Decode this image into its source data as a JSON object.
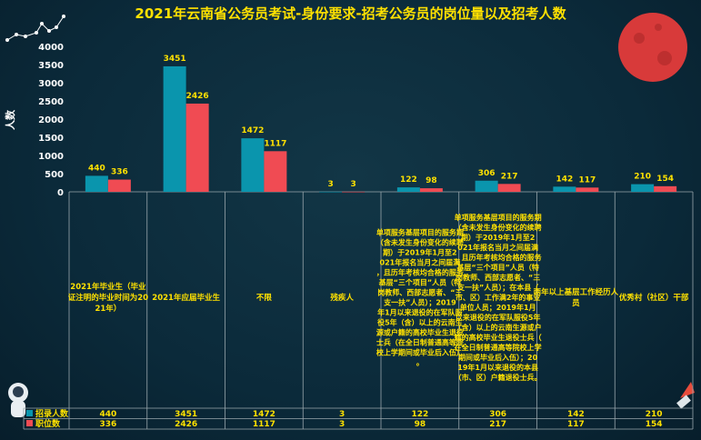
{
  "title": "2021年云南省公务员考试-身份要求-招考公务员的岗位量以及招考人数",
  "chart_data": {
    "type": "bar",
    "title": "2021年云南省公务员考试-身份要求-招考公务员的岗位量以及招考人数",
    "ylabel": "人数",
    "ylim": [
      0,
      4000
    ],
    "yticks": [
      0,
      500,
      1000,
      1500,
      2000,
      2500,
      3000,
      3500,
      4000
    ],
    "categories": [
      "2021年毕业生（毕业证注明的毕业时间为2021年）",
      "2021年应届毕业生",
      "不限",
      "残疾人",
      "单项服务基层项目的服务期（含未发生身份变化的续聘期）于2019年1月至2021年报名当月之间届满，且历年考核均合格的服务基层“三个项目”人员（特岗教师、西部志愿者、“三支一扶”人员）；2019年1月以来退役的在军队服役5年（含）以上的云南生源或户籍的高校毕业生退役士兵（在全日制普通高等院校上学期间或毕业后入伍）。",
      "单项服务基层项目的服务期（含未发生身份变化的续聘期）于2019年1月至2021年报名当月之间届满，且历年考核均合格的服务基层“三个项目”人员（特岗教师、西部志愿者、“三支一扶”人员）；在本县（市、区）工作满2年的事业单位人员；2019年1月以来退役的在军队服役5年（含）以上的云南生源或户籍的高校毕业生退役士兵（在全日制普通高等院校上学期间或毕业后入伍）；2019年1月以来退役的本县（市、区）户籍退役士兵。",
      "两年以上基层工作经历人员",
      "优秀村（社区）干部"
    ],
    "series": [
      {
        "name": "招录人数",
        "color": "#0a95ad",
        "values": [
          440,
          3451,
          1472,
          3,
          122,
          306,
          142,
          210
        ]
      },
      {
        "name": "职位数",
        "color": "#f04b53",
        "values": [
          336,
          2426,
          1117,
          3,
          98,
          217,
          117,
          154
        ]
      }
    ],
    "legend": "bottom-table",
    "grid": false
  },
  "colors": {
    "title": "#ffe100",
    "axis_text": "#ffffff",
    "label_text": "#ffe100",
    "grid_line": "#9aa7ad",
    "table_text": "#ffe100"
  }
}
